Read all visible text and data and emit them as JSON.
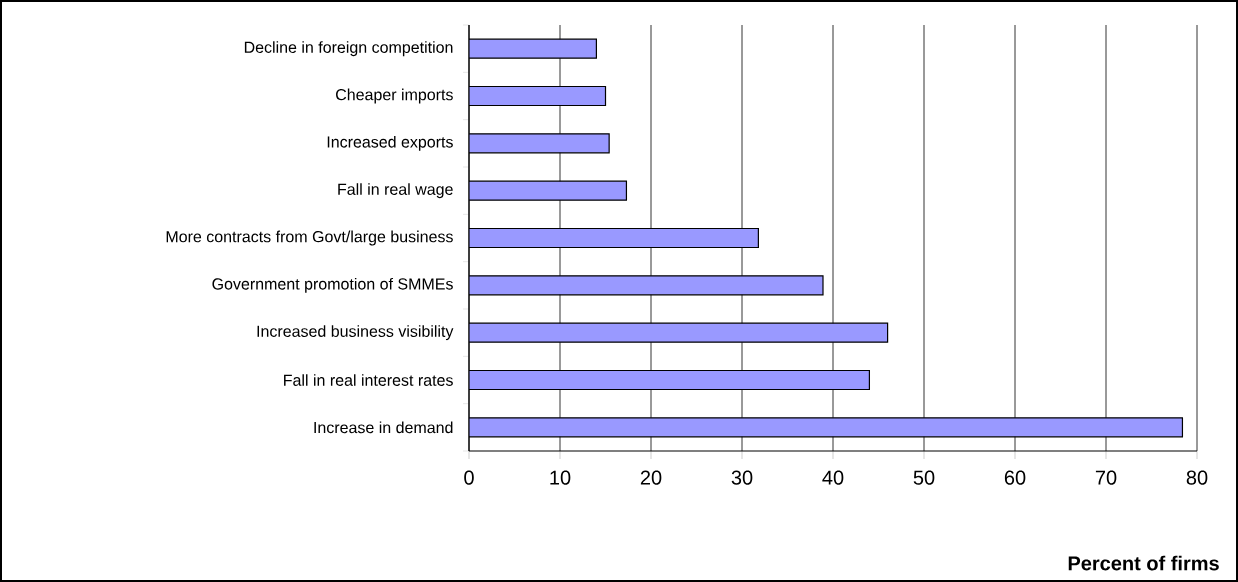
{
  "chart_data": {
    "type": "bar",
    "orientation": "horizontal",
    "xlabel": "Percent of firms",
    "categories": [
      "Decline in foreign competition",
      "Cheaper imports",
      "Increased exports",
      "Fall in real wage",
      "More contracts from Govt/large business",
      "Government promotion of SMMEs",
      "Increased business visibility",
      "Fall in real interest rates",
      "Increase in demand"
    ],
    "values": [
      14,
      15,
      15.4,
      17.3,
      31.8,
      38.9,
      46,
      44,
      78.4
    ],
    "color": "#9999ff",
    "xlim": [
      0,
      80
    ],
    "xticks": [
      0,
      10,
      20,
      30,
      40,
      50,
      60,
      70,
      80
    ],
    "grid": "x"
  }
}
